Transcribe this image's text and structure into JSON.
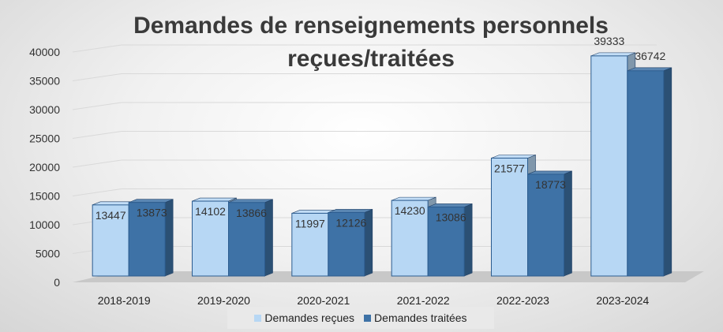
{
  "chart_data": {
    "type": "bar",
    "title": "Demandes de renseignements personnels reçues/traitées",
    "categories": [
      "2018-2019",
      "2019-2020",
      "2020-2021",
      "2021-2022",
      "2022-2023",
      "2023-2024"
    ],
    "series": [
      {
        "name": "Demandes reçues",
        "values": [
          13447,
          14102,
          11997,
          14230,
          21577,
          39333
        ],
        "color": "#b7d7f4"
      },
      {
        "name": "Demandes traitées",
        "values": [
          13873,
          13866,
          12126,
          13086,
          18773,
          36742
        ],
        "color": "#3e72a6"
      }
    ],
    "ylim": [
      0,
      40000
    ],
    "yticks": [
      0,
      5000,
      10000,
      15000,
      20000,
      25000,
      30000,
      35000,
      40000
    ],
    "grid": true,
    "legend_position": "bottom",
    "three_d": true
  }
}
